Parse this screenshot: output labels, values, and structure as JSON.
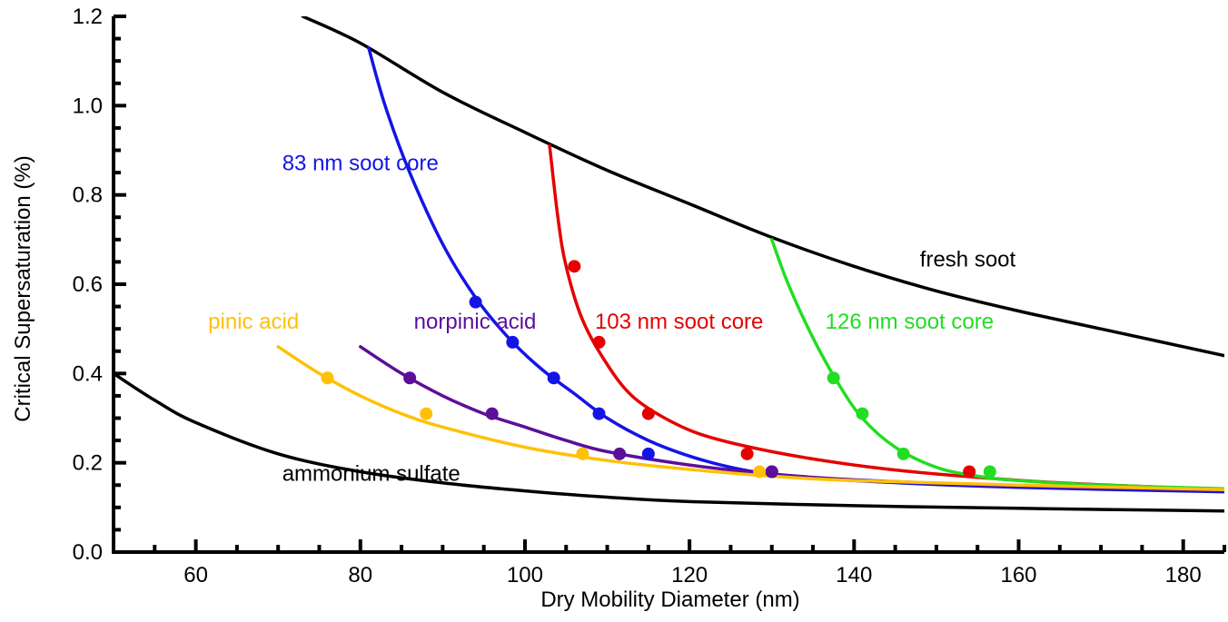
{
  "chart_data": {
    "type": "line",
    "title": "",
    "xlabel": "Dry Mobility Diameter (nm)",
    "ylabel": "Critical Supersaturation (%)",
    "xlim": [
      50,
      185
    ],
    "ylim": [
      0.0,
      1.2
    ],
    "x_ticks": [
      60,
      80,
      100,
      120,
      140,
      160,
      180
    ],
    "y_ticks": [
      0.0,
      0.2,
      0.4,
      0.6,
      0.8,
      1.0,
      1.2
    ],
    "y_tick_labels": [
      "0.0",
      "0.2",
      "0.4",
      "0.6",
      "0.8",
      "1.0",
      "1.2"
    ],
    "grid": false,
    "legend": "none",
    "series": [
      {
        "name": "fresh soot",
        "color": "#000000",
        "line": [
          [
            73,
            1.2
          ],
          [
            80,
            1.14
          ],
          [
            90,
            1.03
          ],
          [
            100,
            0.94
          ],
          [
            110,
            0.855
          ],
          [
            120,
            0.78
          ],
          [
            130,
            0.705
          ],
          [
            140,
            0.64
          ],
          [
            150,
            0.585
          ],
          [
            160,
            0.54
          ],
          [
            170,
            0.5
          ],
          [
            185,
            0.44
          ]
        ],
        "points": []
      },
      {
        "name": "ammonium sulfate",
        "color": "#000000",
        "line": [
          [
            50,
            0.4
          ],
          [
            55,
            0.34
          ],
          [
            60,
            0.29
          ],
          [
            70,
            0.22
          ],
          [
            80,
            0.18
          ],
          [
            90,
            0.155
          ],
          [
            100,
            0.137
          ],
          [
            110,
            0.123
          ],
          [
            120,
            0.113
          ],
          [
            140,
            0.104
          ],
          [
            160,
            0.098
          ],
          [
            185,
            0.092
          ]
        ],
        "points": []
      },
      {
        "name": "83 nm soot core",
        "color": "#1414e6",
        "line": [
          [
            81,
            1.13
          ],
          [
            83,
            1.0
          ],
          [
            86,
            0.85
          ],
          [
            90,
            0.69
          ],
          [
            94,
            0.57
          ],
          [
            98,
            0.48
          ],
          [
            102,
            0.41
          ],
          [
            106,
            0.355
          ],
          [
            110,
            0.3
          ],
          [
            115,
            0.25
          ],
          [
            120,
            0.215
          ],
          [
            125,
            0.19
          ],
          [
            130,
            0.175
          ],
          [
            140,
            0.16
          ],
          [
            160,
            0.145
          ],
          [
            185,
            0.135
          ]
        ],
        "points": [
          [
            94,
            0.56
          ],
          [
            98.5,
            0.47
          ],
          [
            103.5,
            0.39
          ],
          [
            109,
            0.31
          ],
          [
            115,
            0.22
          ],
          [
            130,
            0.18
          ]
        ]
      },
      {
        "name": "103 nm soot core",
        "color": "#e60000",
        "line": [
          [
            103,
            0.91
          ],
          [
            104,
            0.75
          ],
          [
            105,
            0.64
          ],
          [
            107,
            0.52
          ],
          [
            110,
            0.42
          ],
          [
            113,
            0.35
          ],
          [
            117,
            0.3
          ],
          [
            122,
            0.26
          ],
          [
            130,
            0.225
          ],
          [
            140,
            0.195
          ],
          [
            150,
            0.175
          ],
          [
            165,
            0.155
          ],
          [
            185,
            0.14
          ]
        ],
        "points": [
          [
            106,
            0.64
          ],
          [
            109,
            0.47
          ],
          [
            115,
            0.31
          ],
          [
            127,
            0.22
          ],
          [
            154,
            0.18
          ]
        ]
      },
      {
        "name": "126 nm soot core",
        "color": "#22dd22",
        "line": [
          [
            130,
            0.7
          ],
          [
            132,
            0.6
          ],
          [
            135,
            0.48
          ],
          [
            138,
            0.38
          ],
          [
            141,
            0.3
          ],
          [
            145,
            0.235
          ],
          [
            150,
            0.19
          ],
          [
            155,
            0.17
          ],
          [
            160,
            0.16
          ],
          [
            170,
            0.15
          ],
          [
            185,
            0.142
          ]
        ],
        "points": [
          [
            137.5,
            0.39
          ],
          [
            141,
            0.31
          ],
          [
            146,
            0.22
          ],
          [
            156.5,
            0.18
          ]
        ]
      },
      {
        "name": "norpinic acid",
        "color": "#5c0f99",
        "line": [
          [
            80,
            0.46
          ],
          [
            85,
            0.4
          ],
          [
            90,
            0.35
          ],
          [
            95,
            0.31
          ],
          [
            100,
            0.28
          ],
          [
            105,
            0.25
          ],
          [
            110,
            0.225
          ],
          [
            120,
            0.195
          ],
          [
            130,
            0.175
          ],
          [
            140,
            0.162
          ],
          [
            160,
            0.148
          ],
          [
            185,
            0.138
          ]
        ],
        "points": [
          [
            86,
            0.39
          ],
          [
            96,
            0.31
          ],
          [
            111.5,
            0.22
          ],
          [
            130,
            0.18
          ]
        ]
      },
      {
        "name": "pinic acid",
        "color": "#ffc107",
        "line": [
          [
            70,
            0.46
          ],
          [
            75,
            0.4
          ],
          [
            80,
            0.35
          ],
          [
            85,
            0.31
          ],
          [
            90,
            0.28
          ],
          [
            100,
            0.235
          ],
          [
            110,
            0.205
          ],
          [
            120,
            0.185
          ],
          [
            130,
            0.17
          ],
          [
            140,
            0.16
          ],
          [
            160,
            0.15
          ],
          [
            185,
            0.14
          ]
        ],
        "points": [
          [
            76,
            0.39
          ],
          [
            88,
            0.31
          ],
          [
            107,
            0.22
          ],
          [
            128.5,
            0.18
          ]
        ]
      }
    ],
    "annotations": [
      {
        "text": "83 nm soot core",
        "series": 2,
        "x": 70.5,
        "y": 0.855,
        "color": "#1414e6"
      },
      {
        "text": "103 nm soot core",
        "series": 3,
        "x": 108.5,
        "y": 0.5,
        "color": "#e60000"
      },
      {
        "text": "126 nm soot core",
        "series": 4,
        "x": 136.5,
        "y": 0.5,
        "color": "#22dd22"
      },
      {
        "text": "fresh soot",
        "series": 0,
        "x": 148,
        "y": 0.64,
        "color": "#000000"
      },
      {
        "text": "pinic acid",
        "series": 6,
        "x": 61.5,
        "y": 0.5,
        "color": "#ffc107"
      },
      {
        "text": "norpinic acid",
        "series": 5,
        "x": 86.5,
        "y": 0.5,
        "color": "#5c0f99"
      },
      {
        "text": "ammonium sulfate",
        "series": 1,
        "x": 70.5,
        "y": 0.16,
        "color": "#000000"
      }
    ]
  }
}
